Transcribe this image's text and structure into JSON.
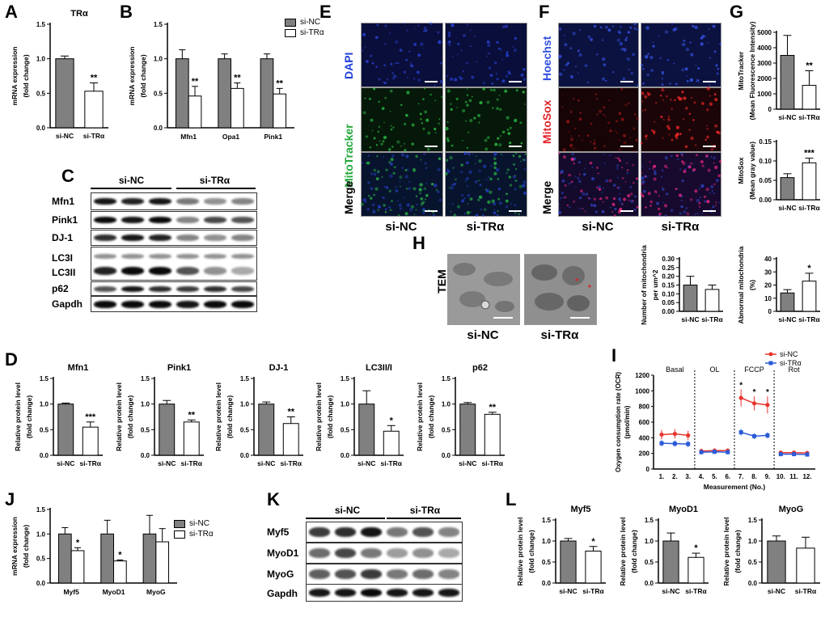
{
  "panel_letters": [
    "A",
    "B",
    "C",
    "D",
    "E",
    "F",
    "G",
    "H",
    "I",
    "J",
    "K",
    "L"
  ],
  "colors": {
    "si_nc": "#808080",
    "si_tra": "#ffffff",
    "dapi": "#1f3fd6",
    "mitotracker": "#22a83a",
    "hoechst": "#2f4fe0",
    "mitosox": "#e0242a",
    "ocr_nc": "#e8342c",
    "ocr_tra": "#2a5ad8"
  },
  "common": {
    "ylabel_mrna": "mRNA expression\n(fold change)",
    "ylabel_protein": "Relative protein level\n(fold change)"
  },
  "legend": {
    "si_nc": "si-NC",
    "si_tra": "si-TRα"
  },
  "panelE": {
    "rows": [
      "DAPI",
      "MitoTracker",
      "Merge"
    ],
    "cols": [
      "si-NC",
      "si-TRα"
    ]
  },
  "panelF": {
    "rows": [
      "Hoechst",
      "MitoSox",
      "Merge"
    ],
    "cols": [
      "si-NC",
      "si-TRα"
    ]
  },
  "panelC": {
    "groups": [
      "si-NC",
      "si-TRα"
    ],
    "rows": [
      "Mfn1",
      "Pink1",
      "DJ-1",
      "LC3I",
      "LC3II",
      "p62",
      "Gapdh"
    ]
  },
  "panelK": {
    "groups": [
      "si-NC",
      "si-TRα"
    ],
    "rows": [
      "Myf5",
      "MyoD1",
      "MyoG",
      "Gapdh"
    ]
  },
  "panelH": {
    "row_label": "TEM",
    "cols": [
      "si-NC",
      "si-TRα"
    ]
  },
  "chart_data": [
    {
      "id": "A",
      "type": "bar",
      "title": "TRα",
      "categories": [
        "si-NC",
        "si-TRα"
      ],
      "values": [
        1.0,
        0.53
      ],
      "errors": [
        0.04,
        0.12
      ],
      "sig": [
        "",
        "**"
      ],
      "ylim": [
        0,
        1.5
      ],
      "yticks": [
        "0.0",
        "0.5",
        "1.0",
        "1.5"
      ],
      "ylabel": "mRNA expression\n(fold change)"
    },
    {
      "id": "B",
      "type": "bar",
      "title": "",
      "categories": [
        "Mfn1",
        "Opa1",
        "Pink1"
      ],
      "series": [
        {
          "name": "si-NC",
          "values": [
            1.0,
            1.0,
            1.0
          ],
          "errors": [
            0.13,
            0.07,
            0.07
          ]
        },
        {
          "name": "si-TRα",
          "values": [
            0.46,
            0.57,
            0.49
          ],
          "errors": [
            0.14,
            0.08,
            0.08
          ]
        }
      ],
      "sig": [
        "**",
        "**",
        "**"
      ],
      "ylim": [
        0,
        1.5
      ],
      "yticks": [
        "0.0",
        "0.5",
        "1.0",
        "1.5"
      ],
      "ylabel": "mRNA expression\n(fold change)",
      "legend": "top-right"
    },
    {
      "id": "D1",
      "type": "bar",
      "title": "Mfn1",
      "categories": [
        "si-NC",
        "si-TRα"
      ],
      "values": [
        1.0,
        0.55
      ],
      "errors": [
        0.02,
        0.1
      ],
      "sig": [
        "",
        "***"
      ],
      "ylim": [
        0,
        1.5
      ],
      "yticks": [
        "0.0",
        "0.5",
        "1.0",
        "1.5"
      ],
      "ylabel": "Relative protein level\n(fold change)"
    },
    {
      "id": "D2",
      "type": "bar",
      "title": "Pink1",
      "categories": [
        "si-NC",
        "si-TRα"
      ],
      "values": [
        1.0,
        0.65
      ],
      "errors": [
        0.07,
        0.04
      ],
      "sig": [
        "",
        "**"
      ],
      "ylim": [
        0,
        1.5
      ],
      "yticks": [
        "0.0",
        "0.5",
        "1.0",
        "1.5"
      ],
      "ylabel": "Relative protein level\n(fold change)"
    },
    {
      "id": "D3",
      "type": "bar",
      "title": "DJ-1",
      "categories": [
        "si-NC",
        "si-TRα"
      ],
      "values": [
        1.0,
        0.62
      ],
      "errors": [
        0.04,
        0.13
      ],
      "sig": [
        "",
        "**"
      ],
      "ylim": [
        0,
        1.5
      ],
      "yticks": [
        "0.0",
        "0.5",
        "1.0",
        "1.5"
      ],
      "ylabel": "Relative protein level\n(fold change)"
    },
    {
      "id": "D4",
      "type": "bar",
      "title": "LC3II/I",
      "categories": [
        "si-NC",
        "si-TRα"
      ],
      "values": [
        1.0,
        0.47
      ],
      "errors": [
        0.26,
        0.11
      ],
      "sig": [
        "",
        "*"
      ],
      "ylim": [
        0,
        1.5
      ],
      "yticks": [
        "0.0",
        "0.5",
        "1.0",
        "1.5"
      ],
      "ylabel": "Relative protein level\n(fold change)"
    },
    {
      "id": "D5",
      "type": "bar",
      "title": "p62",
      "categories": [
        "si-NC",
        "si-TRα"
      ],
      "values": [
        1.0,
        0.8
      ],
      "errors": [
        0.03,
        0.04
      ],
      "sig": [
        "",
        "**"
      ],
      "ylim": [
        0,
        1.5
      ],
      "yticks": [
        "0.0",
        "0.5",
        "1.0",
        "1.5"
      ],
      "ylabel": "Relative protein level\n(fold change)"
    },
    {
      "id": "G1",
      "type": "bar",
      "title": "",
      "categories": [
        "si-NC",
        "si-TRα"
      ],
      "values": [
        3500,
        1550
      ],
      "errors": [
        1300,
        950
      ],
      "sig": [
        "",
        "**"
      ],
      "ylim": [
        0,
        5000
      ],
      "yticks": [
        "0",
        "1000",
        "2000",
        "3000",
        "4000",
        "5000"
      ],
      "ylabel": "MitoTracker\n(Mean Fluorescence Intensity)"
    },
    {
      "id": "G2",
      "type": "bar",
      "title": "",
      "categories": [
        "si-NC",
        "si-TRα"
      ],
      "values": [
        0.057,
        0.095
      ],
      "errors": [
        0.01,
        0.012
      ],
      "sig": [
        "",
        "***"
      ],
      "ylim": [
        0,
        0.15
      ],
      "yticks": [
        "0.00",
        "0.05",
        "0.10",
        "0.15"
      ],
      "ylabel": "MitoSox\n(Mean gray value)"
    },
    {
      "id": "H1",
      "type": "bar",
      "title": "",
      "categories": [
        "si-NC",
        "si-TRα"
      ],
      "values": [
        0.15,
        0.125
      ],
      "errors": [
        0.05,
        0.025
      ],
      "sig": [
        "",
        ""
      ],
      "ylim": [
        0,
        0.3
      ],
      "yticks": [
        "0.00",
        "0.05",
        "0.10",
        "0.15",
        "0.20",
        "0.25",
        "0.30"
      ],
      "ylabel": "Number of mitochondria\nper um^2"
    },
    {
      "id": "H2",
      "type": "bar",
      "title": "",
      "categories": [
        "si-NC",
        "si-TRα"
      ],
      "values": [
        14,
        23
      ],
      "errors": [
        2.5,
        6
      ],
      "sig": [
        "",
        "*"
      ],
      "ylim": [
        0,
        40
      ],
      "yticks": [
        "0",
        "10",
        "20",
        "30",
        "40"
      ],
      "ylabel": "Abnormal mitochondria\n(%)"
    },
    {
      "id": "I",
      "type": "line",
      "title": "",
      "x": [
        1,
        2,
        3,
        4,
        5,
        6,
        7,
        8,
        9,
        10,
        11,
        12
      ],
      "xticks": [
        "1.",
        "2.",
        "3.",
        "4.",
        "5.",
        "6.",
        "7.",
        "8.",
        "9.",
        "10.",
        "11.",
        "12."
      ],
      "series": [
        {
          "name": "si-NC",
          "values": [
            440,
            450,
            430,
            230,
            235,
            235,
            910,
            840,
            820,
            210,
            210,
            205
          ],
          "errors": [
            60,
            60,
            60,
            30,
            30,
            30,
            110,
            90,
            110,
            25,
            25,
            25
          ]
        },
        {
          "name": "si-TRα",
          "values": [
            330,
            325,
            320,
            215,
            220,
            215,
            470,
            420,
            430,
            190,
            190,
            185
          ],
          "errors": [
            40,
            40,
            40,
            25,
            25,
            25,
            40,
            35,
            40,
            20,
            20,
            20
          ]
        }
      ],
      "sig_points": [
        7,
        8,
        9
      ],
      "phases": [
        "Basal",
        "OL",
        "FCCP",
        "Rot"
      ],
      "ylim": [
        0,
        1200
      ],
      "yticks": [
        "0",
        "200",
        "400",
        "600",
        "800",
        "1000",
        "1200"
      ],
      "xlabel": "Measurement (No.)",
      "ylabel": "Oxygen consumption rate (OCR)\n(pmol/min)",
      "legend": "top-right"
    },
    {
      "id": "J",
      "type": "bar",
      "title": "",
      "categories": [
        "Myf5",
        "MyoD1",
        "MyoG"
      ],
      "series": [
        {
          "name": "si-NC",
          "values": [
            1.0,
            1.0,
            1.0
          ],
          "errors": [
            0.13,
            0.28,
            0.38
          ]
        },
        {
          "name": "si-TRα",
          "values": [
            0.66,
            0.45,
            0.84
          ],
          "errors": [
            0.06,
            0.02,
            0.27
          ]
        }
      ],
      "sig": [
        "*",
        "*",
        ""
      ],
      "ylim": [
        0,
        1.5
      ],
      "yticks": [
        "0.0",
        "0.5",
        "1.0",
        "1.5"
      ],
      "ylabel": "mRNA expression\n(fold change)",
      "legend": "top-right"
    },
    {
      "id": "L1",
      "type": "bar",
      "title": "Myf5",
      "categories": [
        "si-NC",
        "si-TRα"
      ],
      "values": [
        1.0,
        0.76
      ],
      "errors": [
        0.06,
        0.11
      ],
      "sig": [
        "",
        "*"
      ],
      "ylim": [
        0,
        1.5
      ],
      "yticks": [
        "0.0",
        "0.5",
        "1.0",
        "1.5"
      ],
      "ylabel": "Relative protein level\n(fold change)"
    },
    {
      "id": "L2",
      "type": "bar",
      "title": "MyoD1",
      "categories": [
        "si-NC",
        "si-TRα"
      ],
      "values": [
        1.0,
        0.61
      ],
      "errors": [
        0.19,
        0.1
      ],
      "sig": [
        "",
        "*"
      ],
      "ylim": [
        0,
        1.5
      ],
      "yticks": [
        "0.0",
        "0.5",
        "1.0",
        "1.5"
      ],
      "ylabel": "Relative protein level\n(fold change)"
    },
    {
      "id": "L3",
      "type": "bar",
      "title": "MyoG",
      "categories": [
        "si-NC",
        "si-TRα"
      ],
      "values": [
        1.0,
        0.83
      ],
      "errors": [
        0.12,
        0.26
      ],
      "sig": [
        "",
        ""
      ],
      "ylim": [
        0,
        1.5
      ],
      "yticks": [
        "0.0",
        "0.5",
        "1.0",
        "1.5"
      ],
      "ylabel": "Relative protein level\n(fold change)"
    }
  ]
}
